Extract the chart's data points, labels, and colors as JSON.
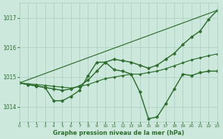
{
  "bg_color": "#cce8dc",
  "grid_color": "#aaccbb",
  "line_color": "#2d6e2d",
  "marker_color": "#2d6e2d",
  "title": "Graphe pression niveau de la mer (hPa)",
  "xlim": [
    0,
    23
  ],
  "ylim": [
    1013.5,
    1017.5
  ],
  "yticks": [
    1014,
    1015,
    1016,
    1017
  ],
  "xticks": [
    0,
    1,
    2,
    3,
    4,
    5,
    6,
    7,
    8,
    9,
    10,
    11,
    12,
    13,
    14,
    15,
    16,
    17,
    18,
    19,
    20,
    21,
    22,
    23
  ],
  "series": [
    {
      "x": [
        0,
        1,
        2,
        3,
        4,
        5,
        6,
        7,
        8,
        9,
        10,
        11,
        12,
        13,
        14,
        15,
        16,
        17,
        18,
        19,
        20,
        21,
        22,
        23
      ],
      "y": [
        1014.8,
        1014.75,
        1014.7,
        1014.65,
        1014.2,
        1014.2,
        1014.35,
        1014.55,
        1015.05,
        1015.5,
        1015.5,
        1015.25,
        1015.2,
        1015.1,
        1014.5,
        1013.6,
        1013.65,
        1014.1,
        1014.6,
        1015.1,
        1015.05,
        1015.15,
        1015.2,
        1015.2
      ],
      "linestyle": "-",
      "marker": "D",
      "markersize": 2.5,
      "linewidth": 1.1
    },
    {
      "x": [
        0,
        1,
        2,
        3,
        4,
        5,
        6,
        7,
        8,
        9,
        10,
        11,
        12,
        13,
        14,
        15,
        16,
        17,
        18,
        19,
        20,
        21,
        22,
        23
      ],
      "y": [
        1014.8,
        1014.75,
        1014.7,
        1014.65,
        1014.6,
        1014.55,
        1014.6,
        1014.7,
        1014.9,
        1015.2,
        1015.5,
        1015.6,
        1015.55,
        1015.5,
        1015.4,
        1015.3,
        1015.4,
        1015.6,
        1015.8,
        1016.1,
        1016.35,
        1016.55,
        1016.95,
        1017.25
      ],
      "linestyle": "-",
      "marker": "D",
      "markersize": 2.5,
      "linewidth": 1.1
    },
    {
      "x": [
        0,
        2,
        3,
        4,
        5,
        6,
        7,
        8,
        9,
        10,
        11,
        12,
        13,
        14,
        15,
        16,
        17,
        18,
        19,
        20,
        21,
        22,
        23
      ],
      "y": [
        1014.8,
        1014.75,
        1014.72,
        1014.69,
        1014.66,
        1014.63,
        1014.68,
        1014.75,
        1014.85,
        1014.95,
        1015.0,
        1015.05,
        1015.1,
        1015.1,
        1015.15,
        1015.2,
        1015.28,
        1015.38,
        1015.48,
        1015.58,
        1015.65,
        1015.72,
        1015.78
      ],
      "linestyle": "-",
      "marker": "D",
      "markersize": 2.0,
      "linewidth": 0.9
    },
    {
      "x": [
        0,
        23
      ],
      "y": [
        1014.8,
        1017.25
      ],
      "linestyle": "-",
      "marker": null,
      "markersize": 0,
      "linewidth": 0.9
    }
  ]
}
